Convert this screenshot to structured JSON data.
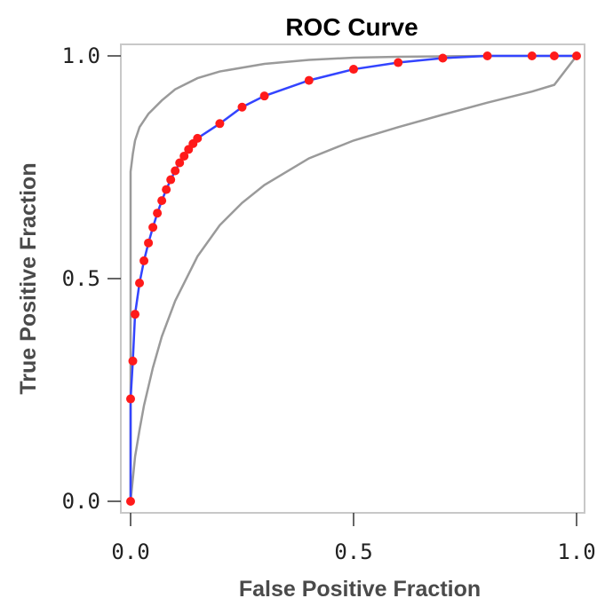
{
  "chart_data": {
    "type": "line",
    "title": "ROC Curve",
    "xlabel": "False Positive Fraction",
    "ylabel": "True Positive Fraction",
    "xlim": [
      0,
      1
    ],
    "ylim": [
      0,
      1
    ],
    "xticks": [
      0.0,
      0.5,
      1.0
    ],
    "yticks": [
      0.0,
      0.5,
      1.0
    ],
    "xtick_labels": [
      "0.0",
      "0.5",
      "1.0"
    ],
    "ytick_labels": [
      "0.0",
      "0.5",
      "1.0"
    ],
    "grid": false,
    "series": [
      {
        "role": "roc-curve",
        "color": "#3344ff",
        "marker_color": "#ff1a1a",
        "x": [
          0.0,
          0.0,
          0.005,
          0.01,
          0.02,
          0.03,
          0.04,
          0.05,
          0.06,
          0.07,
          0.08,
          0.09,
          0.1,
          0.11,
          0.12,
          0.13,
          0.14,
          0.15,
          0.2,
          0.25,
          0.3,
          0.4,
          0.5,
          0.6,
          0.7,
          0.8,
          0.9,
          0.95,
          1.0
        ],
        "y": [
          0.0,
          0.23,
          0.315,
          0.42,
          0.49,
          0.54,
          0.58,
          0.615,
          0.647,
          0.675,
          0.7,
          0.722,
          0.742,
          0.76,
          0.775,
          0.79,
          0.803,
          0.815,
          0.848,
          0.885,
          0.91,
          0.945,
          0.97,
          0.985,
          0.995,
          1.0,
          1.0,
          1.0,
          1.0
        ]
      },
      {
        "role": "upper-band",
        "color": "#9a9a9a",
        "x": [
          0.0,
          0.0,
          0.005,
          0.01,
          0.02,
          0.04,
          0.07,
          0.1,
          0.15,
          0.2,
          0.3,
          0.4,
          0.5,
          0.6,
          0.8,
          1.0
        ],
        "y": [
          0.0,
          0.74,
          0.78,
          0.81,
          0.84,
          0.87,
          0.9,
          0.925,
          0.95,
          0.965,
          0.982,
          0.991,
          0.996,
          0.998,
          1.0,
          1.0
        ]
      },
      {
        "role": "lower-band",
        "color": "#9a9a9a",
        "x": [
          0.0,
          0.01,
          0.02,
          0.03,
          0.05,
          0.07,
          0.1,
          0.15,
          0.2,
          0.25,
          0.3,
          0.4,
          0.5,
          0.6,
          0.7,
          0.8,
          0.9,
          0.95,
          1.0
        ],
        "y": [
          0.0,
          0.1,
          0.16,
          0.215,
          0.3,
          0.37,
          0.45,
          0.55,
          0.62,
          0.67,
          0.71,
          0.77,
          0.81,
          0.84,
          0.868,
          0.895,
          0.92,
          0.935,
          1.0
        ]
      }
    ]
  }
}
